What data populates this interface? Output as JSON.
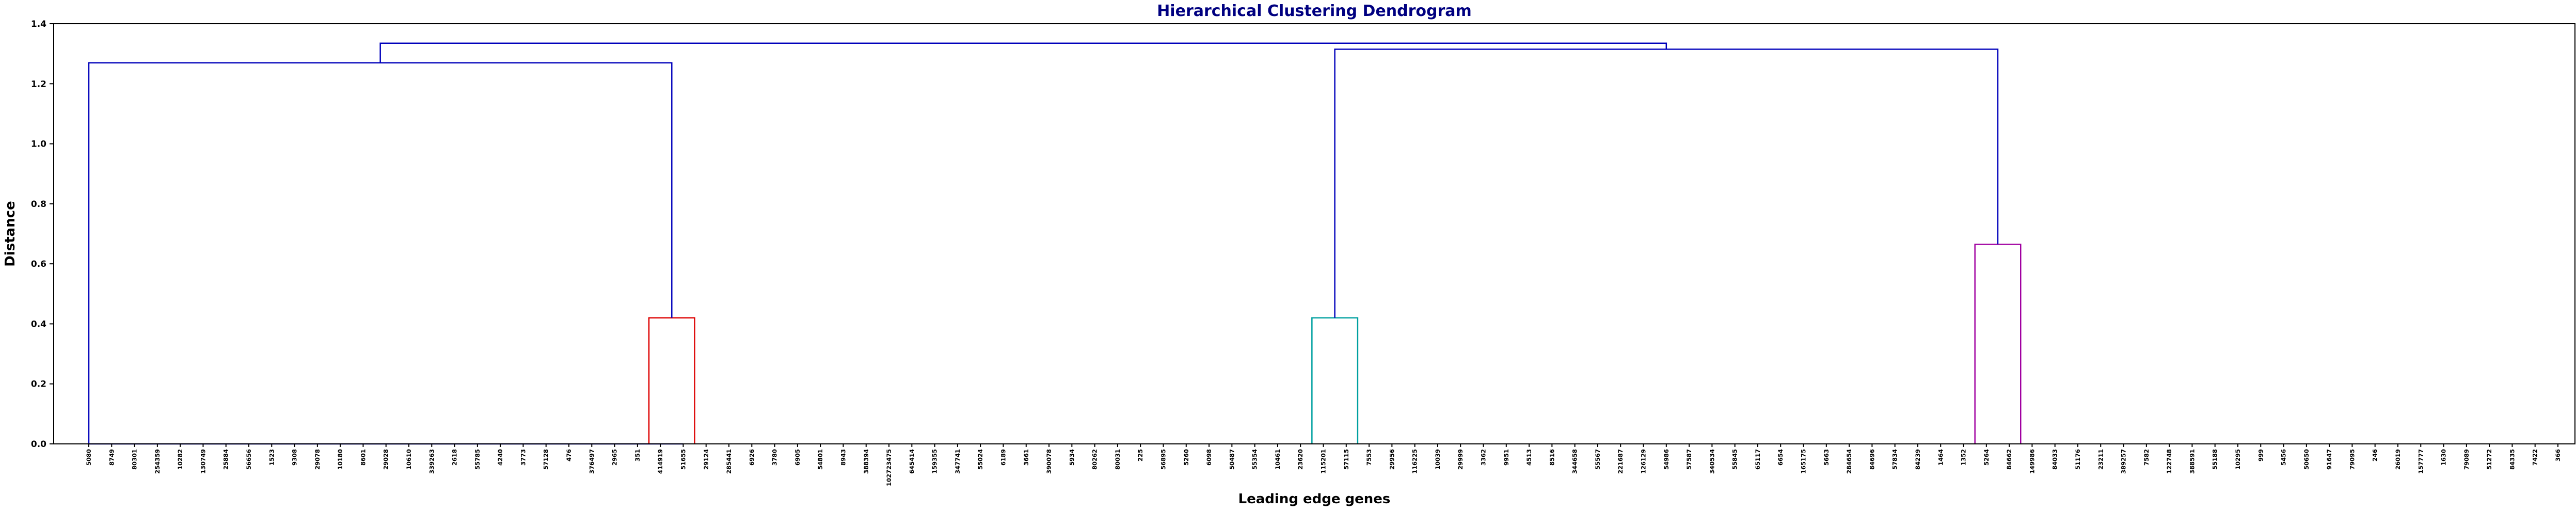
{
  "chart_data": {
    "type": "dendrogram",
    "title": "Hierarchical Clustering Dendrogram",
    "xlabel": "Leading edge genes",
    "ylabel": "Distance",
    "ylim": [
      0,
      1.4
    ],
    "yticks": [
      "0.0",
      "0.2",
      "0.4",
      "0.6",
      "0.8",
      "1.0",
      "1.2",
      "1.4"
    ],
    "ytick_values": [
      0,
      0.2,
      0.4,
      0.6,
      0.8,
      1.0,
      1.2,
      1.4
    ],
    "grid": false,
    "leaves": [
      "5080",
      "8749",
      "80301",
      "254359",
      "10282",
      "130749",
      "25884",
      "56656",
      "1523",
      "9308",
      "29078",
      "10180",
      "8601",
      "29028",
      "10610",
      "339263",
      "2618",
      "55785",
      "4240",
      "3773",
      "57128",
      "476",
      "376497",
      "2965",
      "351",
      "414919",
      "51655",
      "29124",
      "285441",
      "6926",
      "3780",
      "6905",
      "54801",
      "8943",
      "388394",
      "102723475",
      "645414",
      "159355",
      "347741",
      "55024",
      "6189",
      "3661",
      "390078",
      "5934",
      "80262",
      "80031",
      "225",
      "56895",
      "5260",
      "6098",
      "50487",
      "55354",
      "10461",
      "23620",
      "115201",
      "57115",
      "7553",
      "29956",
      "116225",
      "10039",
      "29999",
      "3362",
      "9951",
      "4513",
      "8516",
      "344658",
      "55567",
      "221687",
      "126129",
      "54986",
      "57587",
      "340534",
      "55845",
      "65117",
      "6654",
      "165175",
      "5663",
      "284654",
      "84696",
      "57834",
      "84239",
      "1464",
      "1352",
      "5264",
      "84662",
      "149986",
      "84033",
      "51176",
      "23211",
      "389257",
      "7582",
      "122748",
      "388591",
      "55188",
      "10295",
      "999",
      "5456",
      "50650",
      "91647",
      "79095",
      "246",
      "26019",
      "157777",
      "1630",
      "79089",
      "51272",
      "84335",
      "7422",
      "366"
    ],
    "links": [
      {
        "from": 0,
        "to": 26,
        "height": 0.0,
        "color": "#0000bb"
      },
      {
        "from": 24.5,
        "to": 26.5,
        "height": 0.42,
        "color": "#dd0000"
      },
      {
        "from": 0,
        "to": 25.5,
        "height": 1.27,
        "color": "#0000bb"
      },
      {
        "from": 53.5,
        "to": 55.5,
        "height": 0.42,
        "color": "#00a0a0"
      },
      {
        "from": 82.5,
        "to": 84.5,
        "height": 0.665,
        "color": "#a000a0"
      },
      {
        "from": 54.5,
        "to": 83.5,
        "height": 1.315,
        "color": "#0000bb"
      },
      {
        "from": 12.75,
        "to": 69.0,
        "height": 1.335,
        "color": "#0000bb"
      }
    ]
  }
}
